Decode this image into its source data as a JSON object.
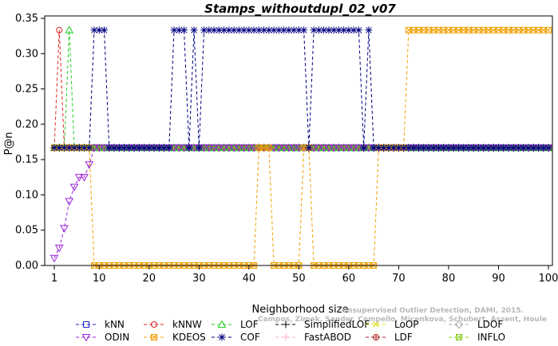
{
  "chart_data": {
    "type": "line",
    "title": "Stamps_withoutdupl_02_v07",
    "xlabel": "Neighborhood size",
    "ylabel": "P@n",
    "xlim": [
      1,
      100
    ],
    "ylim": [
      0,
      0.35
    ],
    "xticks": [
      "1",
      "10",
      "20",
      "30",
      "40",
      "50",
      "60",
      "70",
      "80",
      "90",
      "100"
    ],
    "yticks": [
      "0.00",
      "0.05",
      "0.10",
      "0.15",
      "0.20",
      "0.25",
      "0.30",
      "0.35"
    ],
    "grid": false,
    "legend_position": "bottom",
    "credit_lines": [
      "Unsupervised Outlier Detection, DAMI, 2015.",
      "Campos, Zimek, Sander, Campello, Micenkova, Schubert, Assent, Houle"
    ],
    "series": [
      {
        "name": "kNN",
        "color": "#2222cc",
        "marker": "square",
        "segments": [
          {
            "x": [
              1,
              100
            ],
            "y": [
              0.1667,
              0.1667
            ]
          }
        ]
      },
      {
        "name": "kNNW",
        "color": "#dd2222",
        "marker": "circle",
        "segments": [
          {
            "x": [
              1,
              2,
              3,
              100
            ],
            "y": [
              0.1667,
              0.3333,
              0.1667,
              0.1667
            ]
          }
        ]
      },
      {
        "name": "LOF",
        "color": "#22cc22",
        "marker": "triangle-up",
        "segments": [
          {
            "x": [
              1,
              3,
              4,
              5,
              100
            ],
            "y": [
              0.1667,
              0.1667,
              0.3333,
              0.1667,
              0.1667
            ]
          }
        ]
      },
      {
        "name": "SimplifiedLOF",
        "color": "#000000",
        "marker": "plus",
        "segments": [
          {
            "x": [
              1,
              100
            ],
            "y": [
              0.1667,
              0.1667
            ]
          }
        ]
      },
      {
        "name": "LoOP",
        "color": "#dddd00",
        "marker": "x",
        "segments": [
          {
            "x": [
              1,
              100
            ],
            "y": [
              0.1667,
              0.1667
            ]
          }
        ]
      },
      {
        "name": "LDOF",
        "color": "#aaaaaa",
        "marker": "diamond",
        "segments": [
          {
            "x": [
              1,
              100
            ],
            "y": [
              0.1667,
              0.1667
            ]
          }
        ]
      },
      {
        "name": "ODIN",
        "color": "#9922dd",
        "marker": "triangle-down",
        "segments": [
          {
            "x": [
              1,
              2,
              3,
              4,
              5,
              6,
              7,
              8,
              9,
              100
            ],
            "y": [
              0.0104,
              0.025,
              0.0526,
              0.0909,
              0.1111,
              0.125,
              0.125,
              0.1429,
              0.1667,
              0.1667
            ]
          }
        ]
      },
      {
        "name": "KDEOS",
        "color": "#f0a000",
        "marker": "square-x",
        "segments": [
          {
            "x": [
              1,
              8,
              9,
              41,
              42,
              43,
              44,
              45,
              46,
              50,
              51,
              52,
              53,
              54,
              65,
              66,
              71,
              72,
              100
            ],
            "y": [
              0.1667,
              0.1667,
              0.0,
              0.0,
              0.1667,
              0.1667,
              0.1667,
              0.0,
              0.0,
              0.0,
              0.1667,
              0.1667,
              0.0,
              0.0,
              0.0,
              0.1667,
              0.1667,
              0.3333,
              0.3333
            ]
          }
        ]
      },
      {
        "name": "COF",
        "color": "#000080",
        "marker": "asterisk",
        "segments": [
          {
            "x": [
              1,
              8,
              9,
              10,
              11,
              12,
              24,
              25,
              26,
              27,
              28,
              29,
              30,
              31,
              32,
              33,
              34,
              35,
              36,
              37,
              38,
              39,
              40,
              41,
              42,
              43,
              44,
              45,
              46,
              47,
              48,
              49,
              50,
              51,
              52,
              53,
              54,
              55,
              56,
              57,
              58,
              59,
              60,
              61,
              62,
              63,
              64,
              65,
              100
            ],
            "y": [
              0.1667,
              0.1667,
              0.3333,
              0.3333,
              0.3333,
              0.1667,
              0.1667,
              0.3333,
              0.3333,
              0.3333,
              0.1667,
              0.3333,
              0.1667,
              0.3333,
              0.3333,
              0.3333,
              0.3333,
              0.3333,
              0.3333,
              0.3333,
              0.3333,
              0.3333,
              0.3333,
              0.3333,
              0.3333,
              0.3333,
              0.3333,
              0.3333,
              0.3333,
              0.3333,
              0.3333,
              0.3333,
              0.3333,
              0.3333,
              0.1667,
              0.3333,
              0.3333,
              0.3333,
              0.3333,
              0.3333,
              0.3333,
              0.3333,
              0.3333,
              0.3333,
              0.3333,
              0.1667,
              0.3333,
              0.1667,
              0.1667
            ]
          }
        ]
      },
      {
        "name": "FastABOD",
        "color": "#ffaacc",
        "marker": "plus",
        "segments": [
          {
            "x": [
              1,
              100
            ],
            "y": [
              0.1667,
              0.1667
            ]
          }
        ]
      },
      {
        "name": "LDF",
        "color": "#aa2222",
        "marker": "circle-plus",
        "segments": [
          {
            "x": [
              1,
              100
            ],
            "y": [
              0.1667,
              0.1667
            ]
          }
        ]
      },
      {
        "name": "INFLO",
        "color": "#88cc22",
        "marker": "square-x",
        "segments": [
          {
            "x": [
              1,
              100
            ],
            "y": [
              0.1667,
              0.1667
            ]
          }
        ]
      }
    ]
  }
}
